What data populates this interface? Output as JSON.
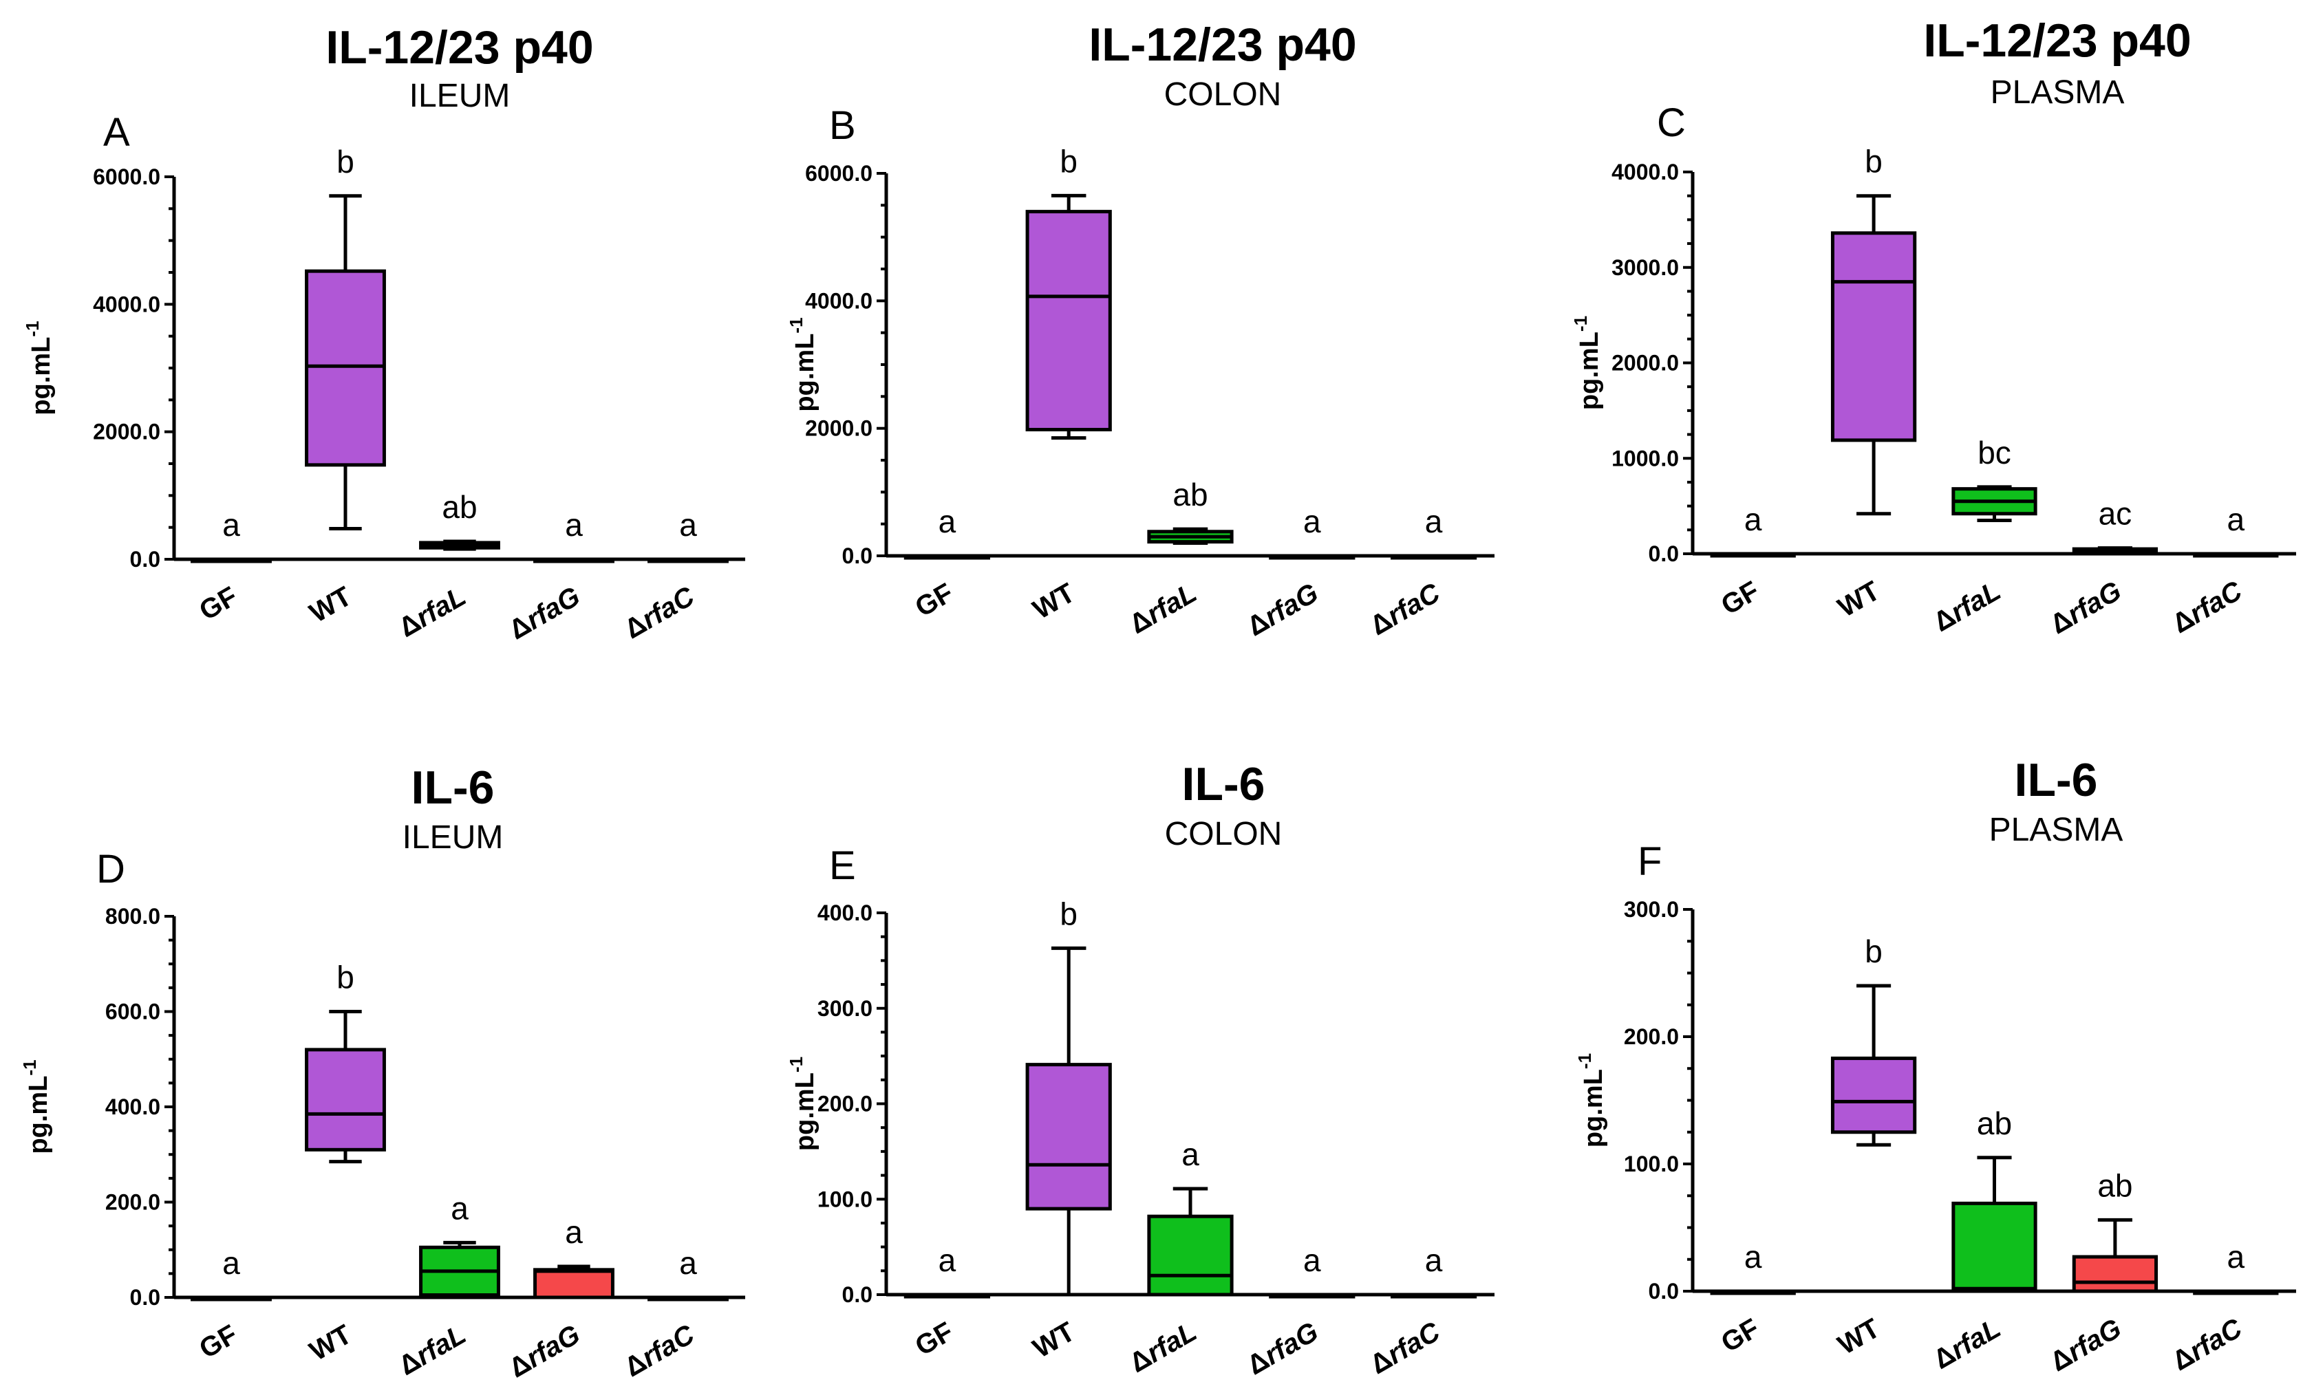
{
  "colors": {
    "purple": "#b057d6",
    "green": "#0fbf1c",
    "red": "#f5484a",
    "white": "#ffffff",
    "axis": "#000000"
  },
  "chart_data": [
    {
      "type": "box",
      "panel": "A",
      "title": "IL-12/23 p40",
      "subtitle": "ILEUM",
      "ylabel": "pg.mL",
      "ylabel_sup": "-1",
      "ylim": [
        0,
        6000
      ],
      "yticks": [
        0,
        2000,
        4000,
        6000
      ],
      "ytick_labels": [
        "0.0",
        "2000.0",
        "4000.0",
        "6000.0"
      ],
      "categories": [
        {
          "name": "GF",
          "prefix": "",
          "italic": false,
          "color": "purple",
          "min": 0,
          "q1": 0,
          "median": 0,
          "q3": 0,
          "max": 0,
          "sig": "a"
        },
        {
          "name": "WT",
          "prefix": "",
          "italic": false,
          "color": "purple",
          "min": 480,
          "q1": 1480,
          "median": 3030,
          "q3": 4520,
          "max": 5700,
          "sig": "b"
        },
        {
          "name": "rfaL",
          "prefix": "Δ",
          "italic": true,
          "color": "green",
          "min": 160,
          "q1": 180,
          "median": 220,
          "q3": 260,
          "max": 280,
          "sig": "ab"
        },
        {
          "name": "rfaG",
          "prefix": "Δ",
          "italic": true,
          "color": "red",
          "min": 0,
          "q1": 0,
          "median": 0,
          "q3": 0,
          "max": 0,
          "sig": "a"
        },
        {
          "name": "rfaC",
          "prefix": "Δ",
          "italic": true,
          "color": "white",
          "min": 0,
          "q1": 0,
          "median": 0,
          "q3": 0,
          "max": 0,
          "sig": "a"
        }
      ]
    },
    {
      "type": "box",
      "panel": "B",
      "title": "IL-12/23 p40",
      "subtitle": "COLON",
      "ylabel": "pg.mL",
      "ylabel_sup": "-1",
      "ylim": [
        0,
        6000
      ],
      "yticks": [
        0,
        2000,
        4000,
        6000
      ],
      "ytick_labels": [
        "0.0",
        "2000.0",
        "4000.0",
        "6000.0"
      ],
      "categories": [
        {
          "name": "GF",
          "prefix": "",
          "italic": false,
          "color": "purple",
          "min": 0,
          "q1": 0,
          "median": 0,
          "q3": 0,
          "max": 0,
          "sig": "a"
        },
        {
          "name": "WT",
          "prefix": "",
          "italic": false,
          "color": "purple",
          "min": 1850,
          "q1": 1980,
          "median": 4070,
          "q3": 5400,
          "max": 5650,
          "sig": "b"
        },
        {
          "name": "rfaL",
          "prefix": "Δ",
          "italic": true,
          "color": "green",
          "min": 200,
          "q1": 220,
          "median": 300,
          "q3": 380,
          "max": 420,
          "sig": "ab"
        },
        {
          "name": "rfaG",
          "prefix": "Δ",
          "italic": true,
          "color": "red",
          "min": 0,
          "q1": 0,
          "median": 0,
          "q3": 0,
          "max": 0,
          "sig": "a"
        },
        {
          "name": "rfaC",
          "prefix": "Δ",
          "italic": true,
          "color": "white",
          "min": 0,
          "q1": 0,
          "median": 0,
          "q3": 0,
          "max": 0,
          "sig": "a"
        }
      ]
    },
    {
      "type": "box",
      "panel": "C",
      "title": "IL-12/23 p40",
      "subtitle": "PLASMA",
      "ylabel": "pg.mL",
      "ylabel_sup": "-1",
      "ylim": [
        0,
        4000
      ],
      "yticks": [
        0,
        1000,
        2000,
        3000,
        4000
      ],
      "ytick_labels": [
        "0.0",
        "1000.0",
        "2000.0",
        "3000.0",
        "4000.0"
      ],
      "categories": [
        {
          "name": "GF",
          "prefix": "",
          "italic": false,
          "color": "purple",
          "min": 0,
          "q1": 0,
          "median": 0,
          "q3": 0,
          "max": 0,
          "sig": "a"
        },
        {
          "name": "WT",
          "prefix": "",
          "italic": false,
          "color": "purple",
          "min": 420,
          "q1": 1190,
          "median": 2850,
          "q3": 3360,
          "max": 3750,
          "sig": "b"
        },
        {
          "name": "rfaL",
          "prefix": "Δ",
          "italic": true,
          "color": "green",
          "min": 350,
          "q1": 420,
          "median": 550,
          "q3": 680,
          "max": 700,
          "sig": "bc"
        },
        {
          "name": "rfaG",
          "prefix": "Δ",
          "italic": true,
          "color": "red",
          "min": 10,
          "q1": 20,
          "median": 30,
          "q3": 50,
          "max": 60,
          "sig": "ac"
        },
        {
          "name": "rfaC",
          "prefix": "Δ",
          "italic": true,
          "color": "white",
          "min": 0,
          "q1": 0,
          "median": 0,
          "q3": 0,
          "max": 0,
          "sig": "a"
        }
      ]
    },
    {
      "type": "box",
      "panel": "D",
      "title": "IL-6",
      "subtitle": "ILEUM",
      "ylabel": "pg.mL",
      "ylabel_sup": "-1",
      "ylim": [
        0,
        800
      ],
      "yticks": [
        0,
        200,
        400,
        600,
        800
      ],
      "ytick_labels": [
        "0.0",
        "200.0",
        "400.0",
        "600.0",
        "800.0"
      ],
      "categories": [
        {
          "name": "GF",
          "prefix": "",
          "italic": false,
          "color": "purple",
          "min": 0,
          "q1": 0,
          "median": 0,
          "q3": 0,
          "max": 0,
          "sig": "a"
        },
        {
          "name": "WT",
          "prefix": "",
          "italic": false,
          "color": "purple",
          "min": 285,
          "q1": 310,
          "median": 385,
          "q3": 520,
          "max": 600,
          "sig": "b"
        },
        {
          "name": "rfaL",
          "prefix": "Δ",
          "italic": true,
          "color": "green",
          "min": 0,
          "q1": 5,
          "median": 55,
          "q3": 105,
          "max": 115,
          "sig": "a"
        },
        {
          "name": "rfaG",
          "prefix": "Δ",
          "italic": true,
          "color": "red",
          "min": 0,
          "q1": 0,
          "median": 55,
          "q3": 58,
          "max": 65,
          "sig": "a"
        },
        {
          "name": "rfaC",
          "prefix": "Δ",
          "italic": true,
          "color": "white",
          "min": 0,
          "q1": 0,
          "median": 0,
          "q3": 0,
          "max": 0,
          "sig": "a"
        }
      ]
    },
    {
      "type": "box",
      "panel": "E",
      "title": "IL-6",
      "subtitle": "COLON",
      "ylabel": "pg.mL",
      "ylabel_sup": "-1",
      "ylim": [
        0,
        400
      ],
      "yticks": [
        0,
        100,
        200,
        300,
        400
      ],
      "ytick_labels": [
        "0.0",
        "100.0",
        "200.0",
        "300.0",
        "400.0"
      ],
      "categories": [
        {
          "name": "GF",
          "prefix": "",
          "italic": false,
          "color": "purple",
          "min": 0,
          "q1": 0,
          "median": 0,
          "q3": 0,
          "max": 0,
          "sig": "a"
        },
        {
          "name": "WT",
          "prefix": "",
          "italic": false,
          "color": "purple",
          "min": 0,
          "q1": 90,
          "median": 136,
          "q3": 241,
          "max": 363,
          "sig": "b"
        },
        {
          "name": "rfaL",
          "prefix": "Δ",
          "italic": true,
          "color": "green",
          "min": 0,
          "q1": 0,
          "median": 20,
          "q3": 82,
          "max": 111,
          "sig": "a"
        },
        {
          "name": "rfaG",
          "prefix": "Δ",
          "italic": true,
          "color": "red",
          "min": 0,
          "q1": 0,
          "median": 0,
          "q3": 0,
          "max": 0,
          "sig": "a"
        },
        {
          "name": "rfaC",
          "prefix": "Δ",
          "italic": true,
          "color": "white",
          "min": 0,
          "q1": 0,
          "median": 0,
          "q3": 0,
          "max": 0,
          "sig": "a"
        }
      ]
    },
    {
      "type": "box",
      "panel": "F",
      "title": "IL-6",
      "subtitle": "PLASMA",
      "ylabel": "pg.mL",
      "ylabel_sup": "-1",
      "ylim": [
        0,
        300
      ],
      "yticks": [
        0,
        100,
        200,
        300
      ],
      "ytick_labels": [
        "0.0",
        "100.0",
        "200.0",
        "300.0"
      ],
      "categories": [
        {
          "name": "GF",
          "prefix": "",
          "italic": false,
          "color": "purple",
          "min": 0,
          "q1": 0,
          "median": 0,
          "q3": 0,
          "max": 0,
          "sig": "a"
        },
        {
          "name": "WT",
          "prefix": "",
          "italic": false,
          "color": "purple",
          "min": 115,
          "q1": 125,
          "median": 149,
          "q3": 183,
          "max": 240,
          "sig": "b"
        },
        {
          "name": "rfaL",
          "prefix": "Δ",
          "italic": true,
          "color": "green",
          "min": 0,
          "q1": 0,
          "median": 2,
          "q3": 69,
          "max": 105,
          "sig": "ab"
        },
        {
          "name": "rfaG",
          "prefix": "Δ",
          "italic": true,
          "color": "red",
          "min": 0,
          "q1": 0,
          "median": 7,
          "q3": 27,
          "max": 56,
          "sig": "ab"
        },
        {
          "name": "rfaC",
          "prefix": "Δ",
          "italic": true,
          "color": "white",
          "min": 0,
          "q1": 0,
          "median": 0,
          "q3": 0,
          "max": 0,
          "sig": "a"
        }
      ]
    }
  ]
}
